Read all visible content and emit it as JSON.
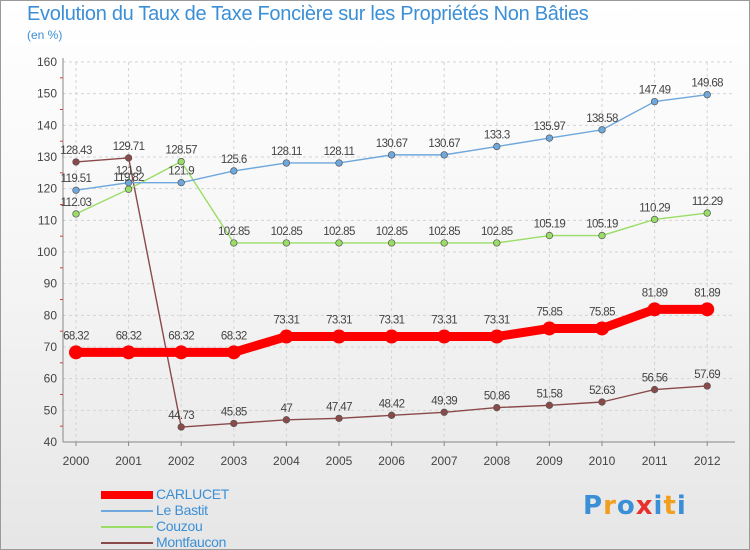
{
  "title": "Evolution du Taux de Taxe Foncière sur les Propriétés Non Bâties",
  "subtitle": "(en %)",
  "logo": {
    "text": "Proxiti",
    "letters": [
      "P",
      "r",
      "o",
      "x",
      "i",
      "t",
      "i"
    ],
    "colors": [
      "#3b8fd6",
      "#f0a020",
      "#3b8fd6",
      "#e8312f",
      "#3b8fd6",
      "#f0a020",
      "#3b8fd6"
    ]
  },
  "chart_data": {
    "type": "line",
    "title": "Evolution du Taux de Taxe Foncière sur les Propriétés Non Bâties",
    "ylabel": "(en %)",
    "xlabel": "",
    "ylim": [
      40,
      160
    ],
    "yticks": [
      "40",
      "50",
      "60",
      "70",
      "80",
      "90",
      "100",
      "110",
      "120",
      "130",
      "140",
      "150",
      "160"
    ],
    "categories": [
      "2000",
      "2001",
      "2002",
      "2003",
      "2004",
      "2005",
      "2006",
      "2007",
      "2008",
      "2009",
      "2010",
      "2011",
      "2012"
    ],
    "grid": true,
    "legend": "bottom-left",
    "series": [
      {
        "name": "CARLUCET",
        "color": "#ff0000",
        "emphasis": true,
        "values": [
          68.32,
          68.32,
          68.32,
          68.32,
          73.31,
          73.31,
          73.31,
          73.31,
          73.31,
          75.85,
          75.85,
          81.89,
          81.89
        ],
        "labels": [
          "68.32",
          "68.32",
          "68.32",
          "68.32",
          "73.31",
          "73.31",
          "73.31",
          "73.31",
          "73.31",
          "75.85",
          "75.85",
          "81.89",
          "81.89"
        ]
      },
      {
        "name": "Le Bastit",
        "color": "#6fa8dc",
        "values": [
          119.51,
          121.9,
          121.9,
          125.6,
          128.11,
          128.11,
          130.67,
          130.67,
          133.3,
          135.97,
          138.58,
          147.49,
          149.68
        ],
        "labels": [
          "119.51",
          "121.9",
          "121.9",
          "125.6",
          "128.11",
          "128.11",
          "130.67",
          "130.67",
          "133.3",
          "135.97",
          "138.58",
          "147.49",
          "149.68"
        ]
      },
      {
        "name": "Couzou",
        "color": "#99dd66",
        "values": [
          112.03,
          119.82,
          128.57,
          102.85,
          102.85,
          102.85,
          102.85,
          102.85,
          102.85,
          105.19,
          105.19,
          110.29,
          112.29
        ],
        "labels": [
          "112.03",
          "119.82",
          "128.57",
          "102.85",
          "102.85",
          "102.85",
          "102.85",
          "102.85",
          "102.85",
          "105.19",
          "105.19",
          "110.29",
          "112.29"
        ]
      },
      {
        "name": "Montfaucon",
        "color": "#8b4a4a",
        "values": [
          128.43,
          129.71,
          44.73,
          45.85,
          47,
          47.47,
          48.42,
          49.39,
          50.86,
          51.58,
          52.63,
          56.56,
          57.69
        ],
        "labels": [
          "128.43",
          "129.71",
          "44.73",
          "45.85",
          "47",
          "47.47",
          "48.42",
          "49.39",
          "50.86",
          "51.58",
          "52.63",
          "56.56",
          "57.69"
        ]
      }
    ]
  }
}
